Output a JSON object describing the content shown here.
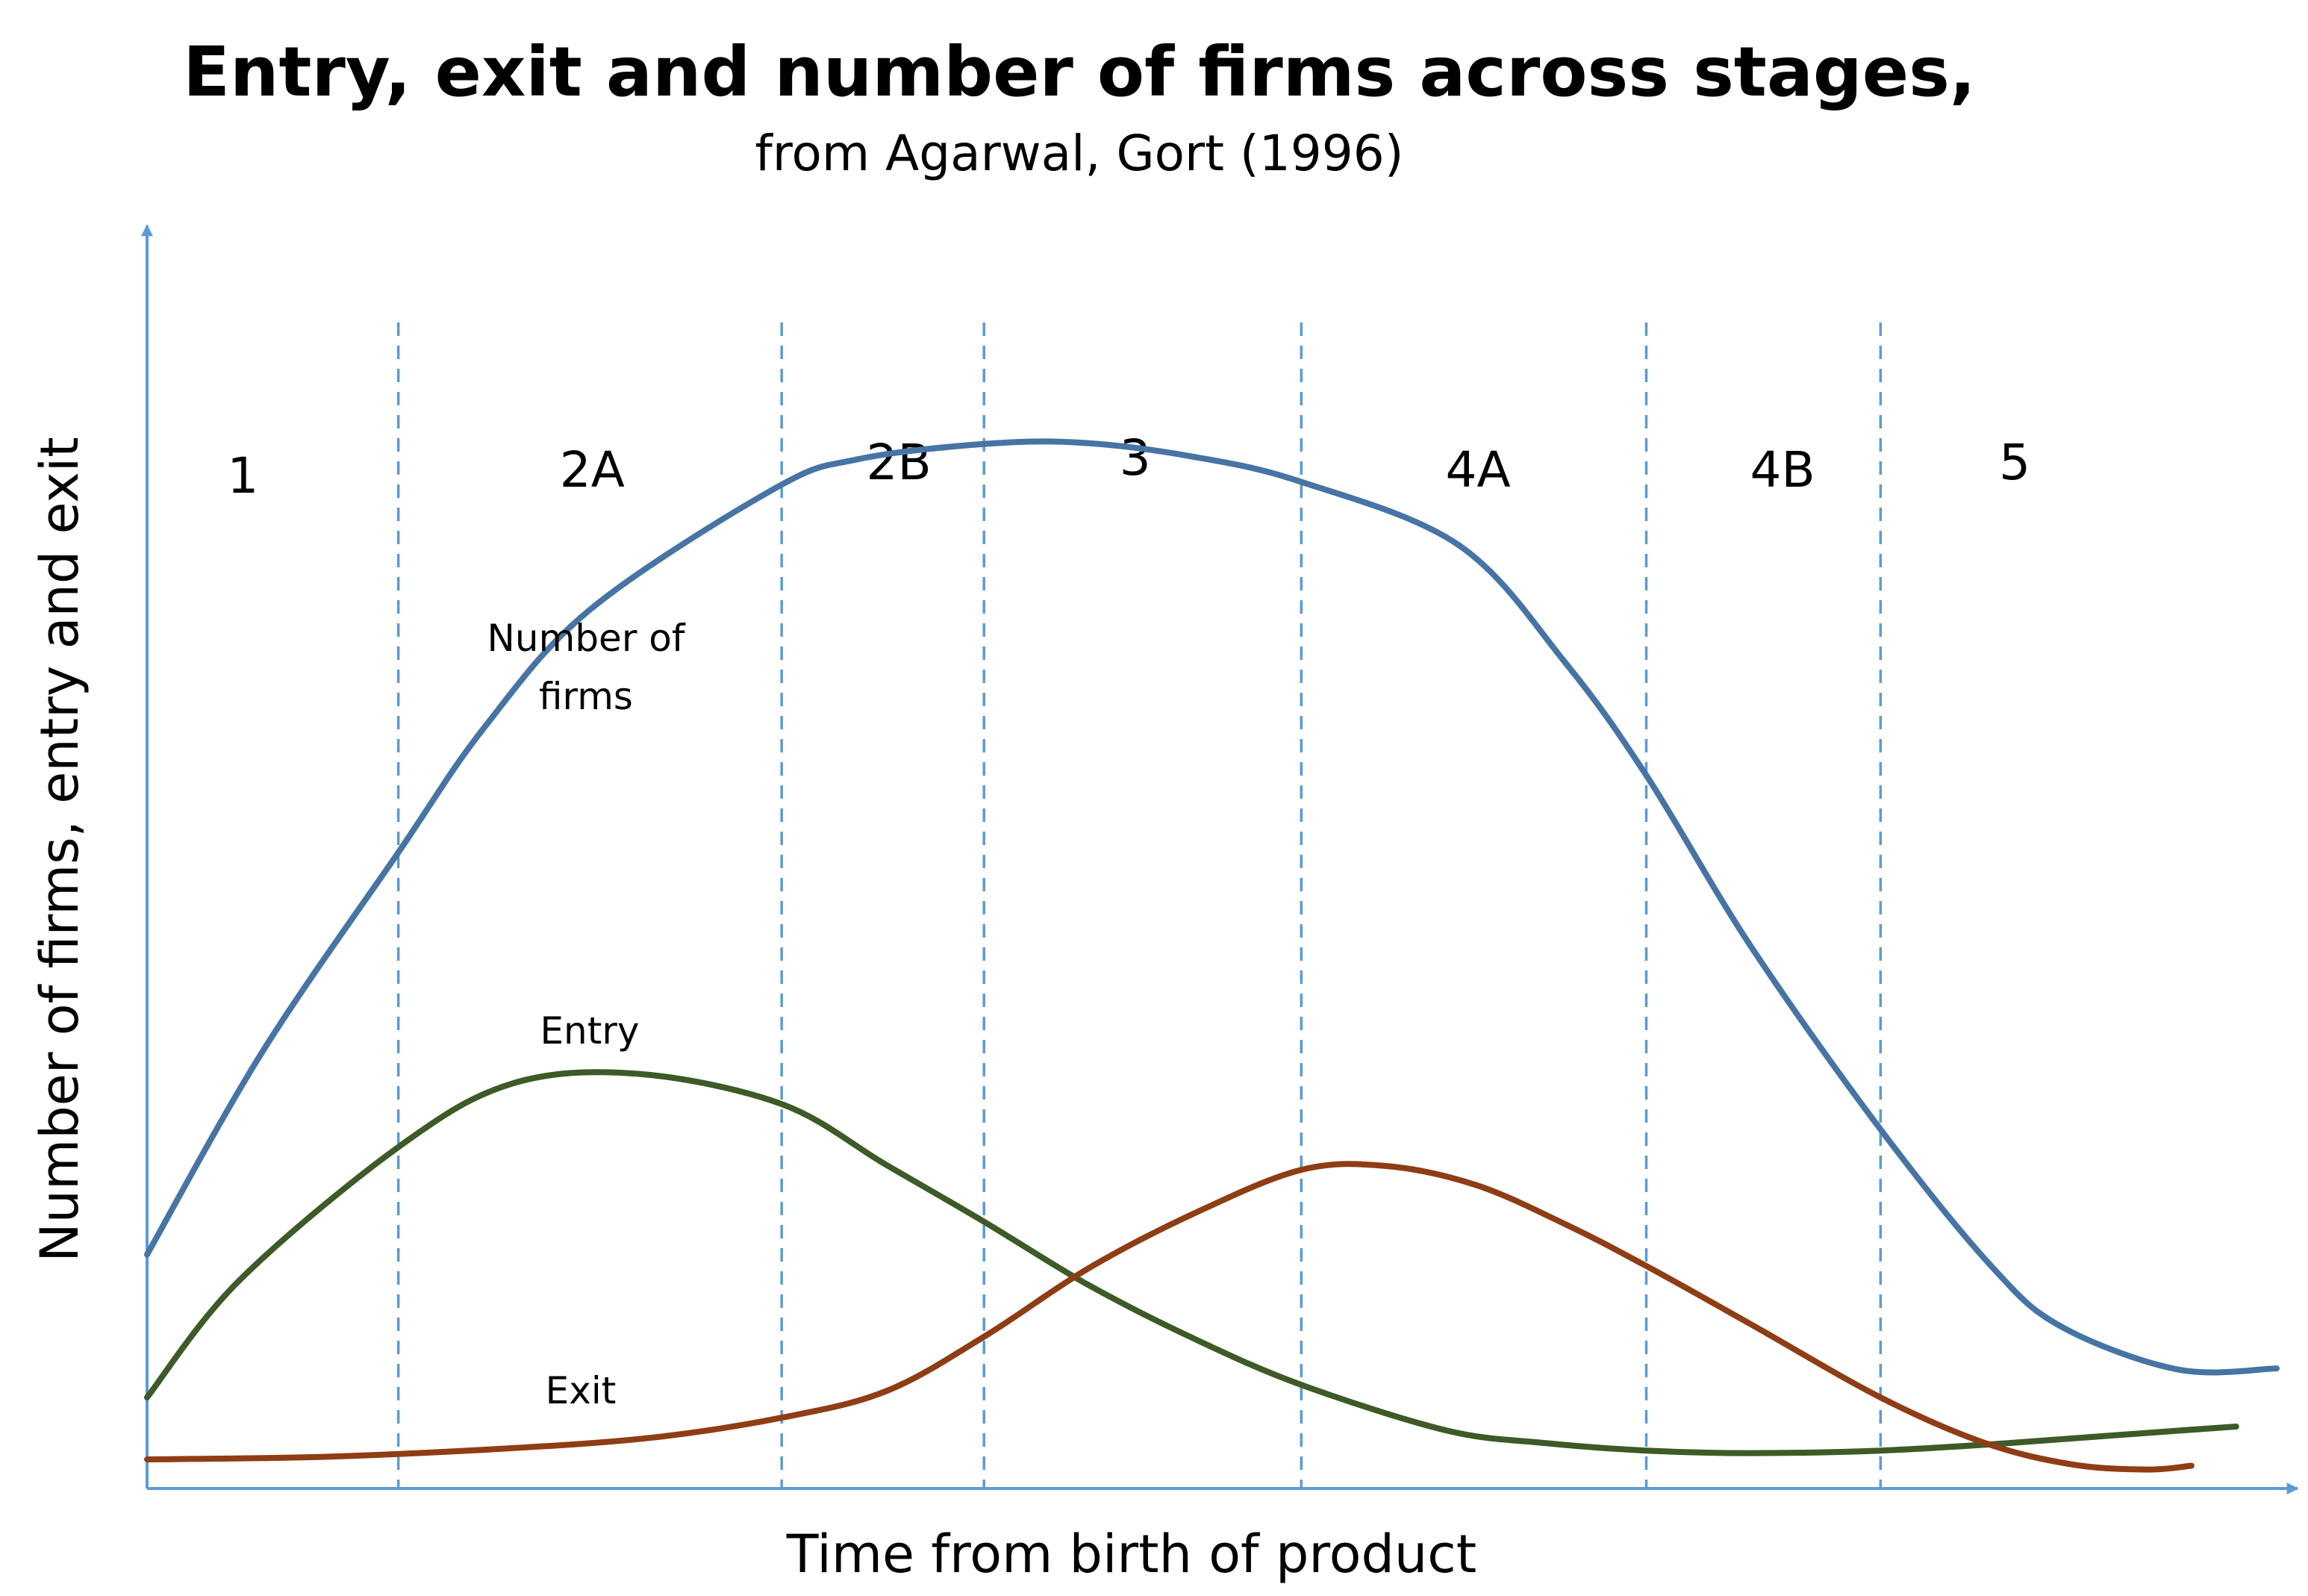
{
  "chart_data": {
    "type": "line",
    "title": "Entry, exit and number of firms across stages,",
    "subtitle": "from Agarwal, Gort (1996)",
    "xlabel": "Time from birth of product",
    "ylabel": "Number of firms, entry and exit",
    "xlim": [
      0,
      100
    ],
    "ylim": [
      0,
      100
    ],
    "grid": false,
    "legend": "none",
    "stage_boundaries": [
      11.8,
      29.8,
      39.3,
      54.2,
      70.4,
      81.4
    ],
    "stages": [
      {
        "label": "1",
        "x": 4.5
      },
      {
        "label": "2A",
        "x": 20.9
      },
      {
        "label": "2B",
        "x": 35.3
      },
      {
        "label": "3",
        "x": 46.4
      },
      {
        "label": "4A",
        "x": 62.5
      },
      {
        "label": "4B",
        "x": 76.8
      },
      {
        "label": "5",
        "x": 87.7
      }
    ],
    "series": [
      {
        "name": "Number of firms",
        "label_lines": [
          "Number of",
          "firms"
        ],
        "color": "#4674a4",
        "points": [
          [
            0,
            18.5
          ],
          [
            5.4,
            34.5
          ],
          [
            11.8,
            50.3
          ],
          [
            15.8,
            60.1
          ],
          [
            20.8,
            69.5
          ],
          [
            29.5,
            79.1
          ],
          [
            33.4,
            81.4
          ],
          [
            39.3,
            82.6
          ],
          [
            43.9,
            82.7
          ],
          [
            49.1,
            81.6
          ],
          [
            54.2,
            79.6
          ],
          [
            61.6,
            74.6
          ],
          [
            66.6,
            65.3
          ],
          [
            70.4,
            56.4
          ],
          [
            75.3,
            42.9
          ],
          [
            81.4,
            28.4
          ],
          [
            86.7,
            17.4
          ],
          [
            90.0,
            12.7
          ],
          [
            95.4,
            9.4
          ],
          [
            100.0,
            9.5
          ]
        ]
      },
      {
        "name": "Entry",
        "label_lines": [
          "Entry"
        ],
        "color": "#3d5a27",
        "points": [
          [
            0,
            7.2
          ],
          [
            4.3,
            16.4
          ],
          [
            11.8,
            27.0
          ],
          [
            17.1,
            32.0
          ],
          [
            23.0,
            32.8
          ],
          [
            29.8,
            30.4
          ],
          [
            34.7,
            25.6
          ],
          [
            39.3,
            21.1
          ],
          [
            44.2,
            16.1
          ],
          [
            49.1,
            11.9
          ],
          [
            54.2,
            8.2
          ],
          [
            61.0,
            4.6
          ],
          [
            65.6,
            3.6
          ],
          [
            70.4,
            3.0
          ],
          [
            75.3,
            2.8
          ],
          [
            81.4,
            3.0
          ],
          [
            87.5,
            3.6
          ],
          [
            93.1,
            4.3
          ],
          [
            98.1,
            4.9
          ]
        ]
      },
      {
        "name": "Exit",
        "label_lines": [
          "Exit"
        ],
        "color": "#8f3d14",
        "points": [
          [
            0,
            2.3
          ],
          [
            8.1,
            2.5
          ],
          [
            16.2,
            3.1
          ],
          [
            23.6,
            4.0
          ],
          [
            29.8,
            5.6
          ],
          [
            34.7,
            7.7
          ],
          [
            39.3,
            12.0
          ],
          [
            44.2,
            17.4
          ],
          [
            49.1,
            21.7
          ],
          [
            54.2,
            25.2
          ],
          [
            58.2,
            25.5
          ],
          [
            62.4,
            24.0
          ],
          [
            66.6,
            20.9
          ],
          [
            70.4,
            17.6
          ],
          [
            75.3,
            13.0
          ],
          [
            81.4,
            7.2
          ],
          [
            86.3,
            3.6
          ],
          [
            90.4,
            1.9
          ],
          [
            93.9,
            1.5
          ],
          [
            96.0,
            1.8
          ]
        ]
      }
    ]
  }
}
